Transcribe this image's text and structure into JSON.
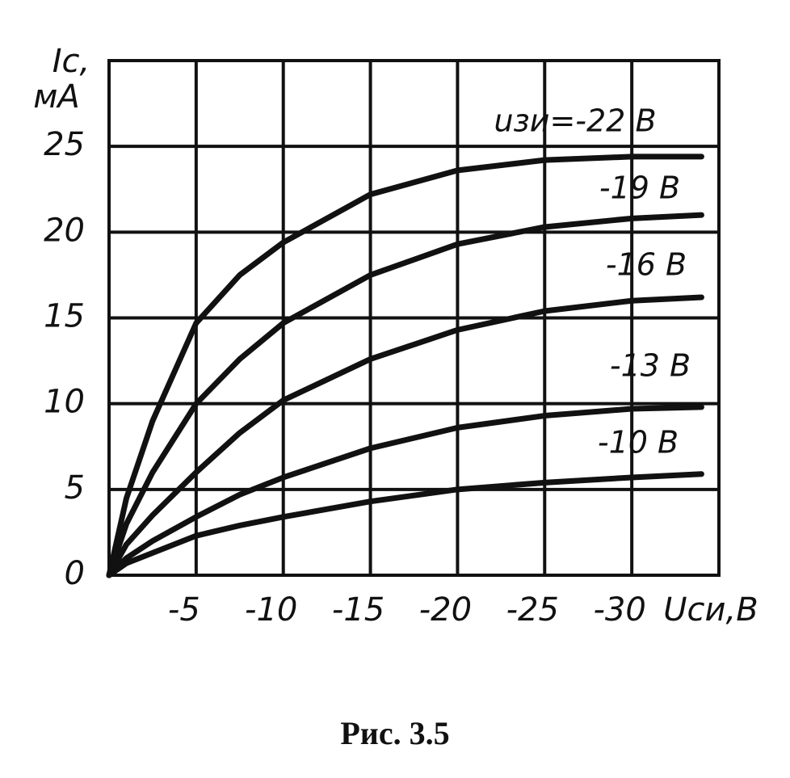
{
  "chart_data": {
    "type": "line",
    "caption": "Рис. 3.5",
    "ylabel": [
      "Iс,",
      "мА"
    ],
    "xlabel": "Uси,В",
    "x": [
      0,
      -1,
      -2.5,
      -5,
      -7.5,
      -10,
      -15,
      -20,
      -25,
      -30,
      -34
    ],
    "series": [
      {
        "name": "uзи=-22 В",
        "color": "#111111",
        "values": [
          0,
          4.5,
          9,
          14.7,
          17.5,
          19.4,
          22.2,
          23.6,
          24.2,
          24.4,
          24.4
        ]
      },
      {
        "name": "-19 В",
        "color": "#111111",
        "values": [
          0,
          3,
          6,
          10,
          12.6,
          14.7,
          17.5,
          19.3,
          20.3,
          20.8,
          21.0
        ]
      },
      {
        "name": "-16 В",
        "color": "#111111",
        "values": [
          0,
          1.8,
          3.5,
          6,
          8.3,
          10.2,
          12.6,
          14.3,
          15.4,
          16.0,
          16.2
        ]
      },
      {
        "name": "-13 В",
        "color": "#111111",
        "values": [
          0,
          1.0,
          2,
          3.4,
          4.7,
          5.7,
          7.4,
          8.6,
          9.3,
          9.7,
          9.8
        ]
      },
      {
        "name": "-10 В",
        "color": "#111111",
        "values": [
          0,
          0.7,
          1.3,
          2.3,
          2.9,
          3.4,
          4.3,
          5.0,
          5.4,
          5.7,
          5.9
        ]
      }
    ],
    "xlim": [
      0,
      -35
    ],
    "ylim": [
      0,
      30
    ],
    "xticks": [
      -5,
      -10,
      -15,
      -20,
      -25,
      -30
    ],
    "yticks": [
      0,
      5,
      10,
      15,
      20,
      25
    ],
    "grid": true
  }
}
